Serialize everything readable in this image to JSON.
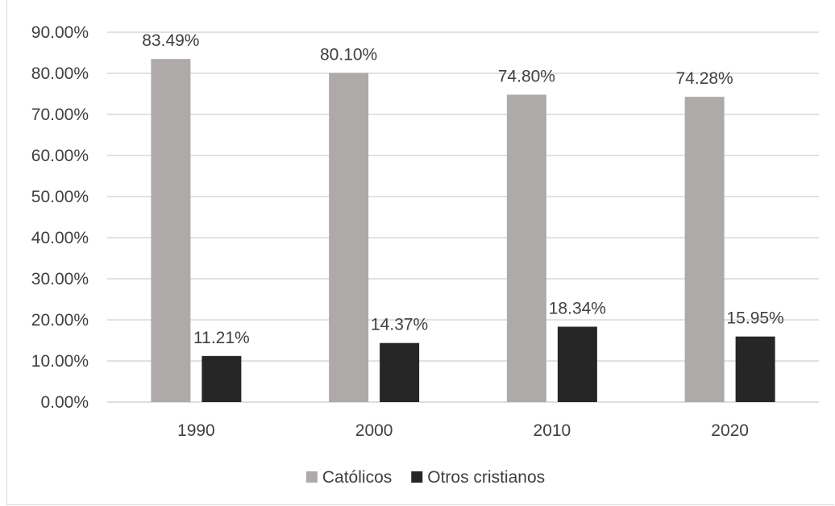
{
  "chart_data": {
    "type": "bar",
    "title": "",
    "xlabel": "",
    "ylabel": "",
    "categories": [
      "1990",
      "2000",
      "2010",
      "2020"
    ],
    "ylim": [
      0,
      90
    ],
    "y_ticks": [
      0,
      10,
      20,
      30,
      40,
      50,
      60,
      70,
      80,
      90
    ],
    "y_tick_labels": [
      "0.00%",
      "10.00%",
      "20.00%",
      "30.00%",
      "40.00%",
      "50.00%",
      "60.00%",
      "70.00%",
      "80.00%",
      "90.00%"
    ],
    "grid": true,
    "legend_position": "bottom",
    "series": [
      {
        "name": "Católicos",
        "color": "#aeaaaa",
        "values": [
          83.49,
          80.1,
          74.8,
          74.28
        ],
        "labels": [
          "83.49%",
          "80.10%",
          "74.80%",
          "74.28%"
        ]
      },
      {
        "name": "Otros cristianos",
        "color": "#262626",
        "values": [
          11.21,
          14.37,
          18.34,
          15.95
        ],
        "labels": [
          "11.21%",
          "14.37%",
          "18.34%",
          "15.95%"
        ]
      }
    ]
  }
}
